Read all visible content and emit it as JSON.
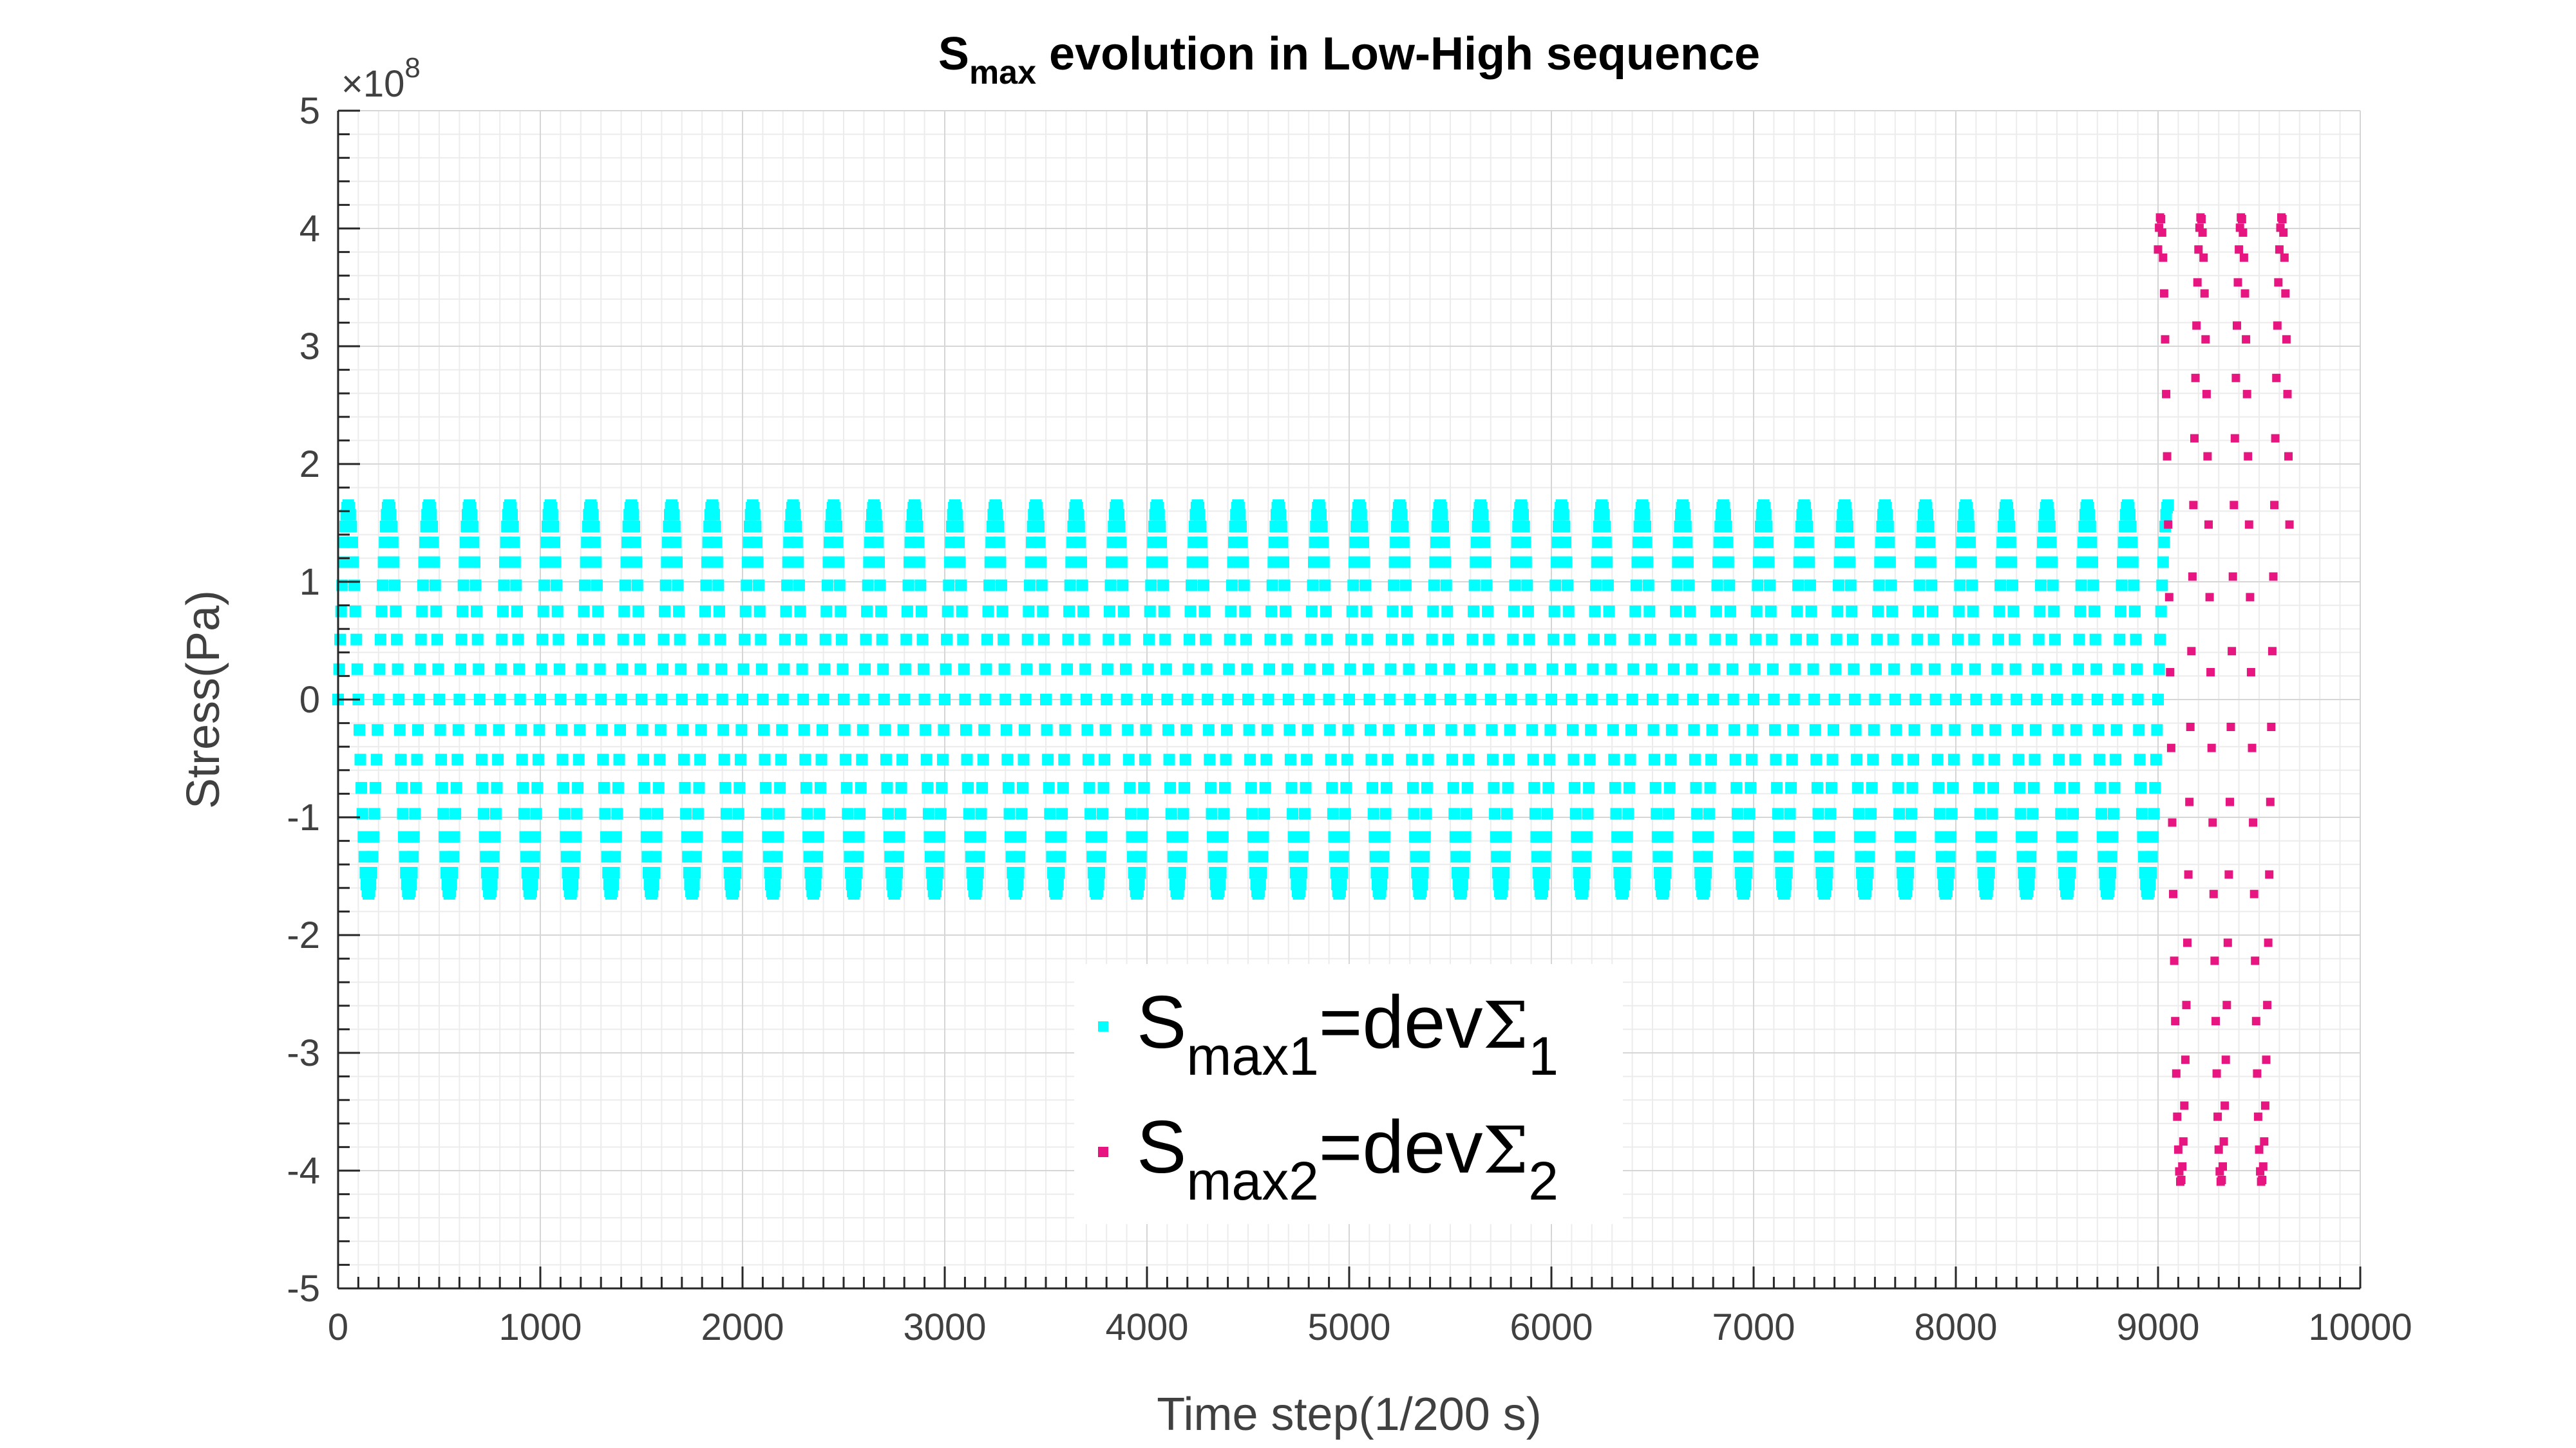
{
  "chart_data": {
    "type": "scatter",
    "title": {
      "main": "S",
      "sub": "max",
      "rest": " evolution in Low-High sequence"
    },
    "xlabel": "Time step(1/200 s)",
    "ylabel": "Stress(Pa)",
    "xlim": [
      0,
      10000
    ],
    "ylim": [
      -500000000,
      500000000
    ],
    "x_ticks": [
      "0",
      "1000",
      "2000",
      "3000",
      "4000",
      "5000",
      "6000",
      "7000",
      "8000",
      "9000",
      "10000"
    ],
    "y_ticks": [
      "5",
      "4",
      "3",
      "2",
      "1",
      "0",
      "-1",
      "-2",
      "-3",
      "-4",
      "-5"
    ],
    "y_exponent": {
      "base": "×10",
      "power": "8"
    },
    "grid": true,
    "minor_grid": true,
    "legend_position": "bottom-center",
    "series": [
      {
        "key": "smax1",
        "legend": {
          "main": "S",
          "sub": "max1",
          "eq": "=dev",
          "symbol": "Σ",
          "index": "1"
        },
        "color": "#00ffff",
        "amplitude": 165000000,
        "period": 200,
        "x_start": 0,
        "x_end": 9050
      },
      {
        "key": "smax2",
        "legend": {
          "main": "S",
          "sub": "max2",
          "eq": "=dev",
          "symbol": "Σ",
          "index": "2"
        },
        "color": "#e6157f",
        "amplitude": 410000000,
        "period": 200,
        "x_start": 9000,
        "x_end": 9650
      }
    ]
  }
}
